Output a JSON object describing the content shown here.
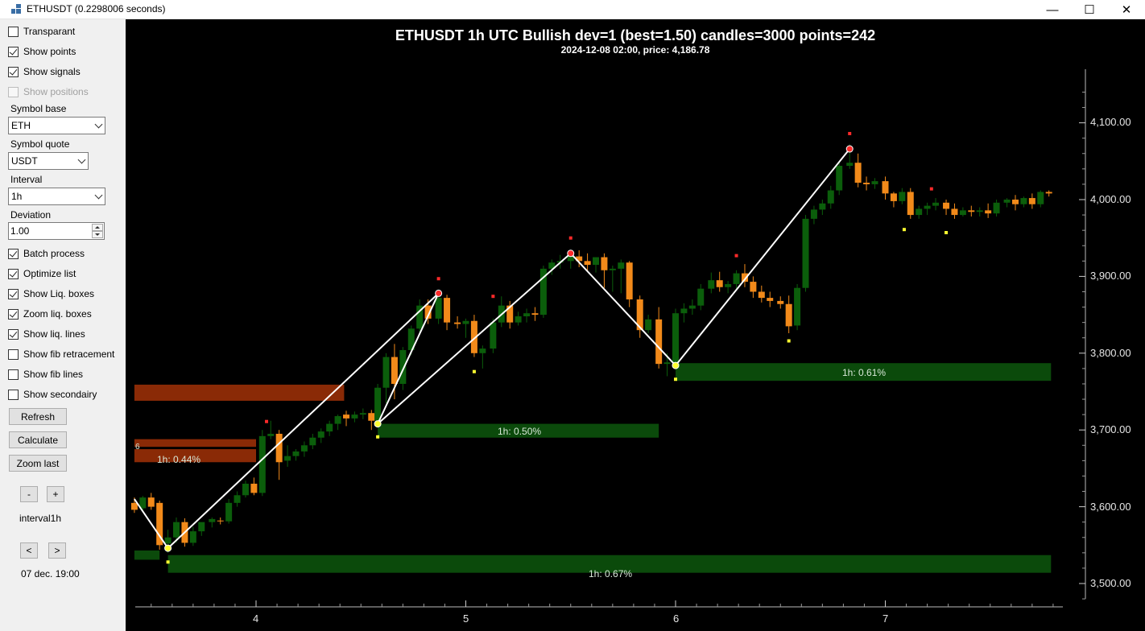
{
  "window": {
    "title": "ETHUSDT (0.2298006 seconds)",
    "minimize_glyph": "—",
    "maximize_glyph": "☐",
    "close_glyph": "✕"
  },
  "panel": {
    "checkboxes": [
      {
        "label": "Transparant",
        "checked": false,
        "disabled": false
      },
      {
        "label": "Show points",
        "checked": true,
        "disabled": false
      },
      {
        "label": "Show signals",
        "checked": true,
        "disabled": false
      },
      {
        "label": "Show positions",
        "checked": false,
        "disabled": true
      }
    ],
    "symbol_base_label": "Symbol base",
    "symbol_base_value": "ETH",
    "symbol_quote_label": "Symbol quote",
    "symbol_quote_value": "USDT",
    "interval_label": "Interval",
    "interval_value": "1h",
    "deviation_label": "Deviation",
    "deviation_value": "1.00",
    "options": [
      {
        "label": "Batch process",
        "checked": true
      },
      {
        "label": "Optimize list",
        "checked": true
      },
      {
        "label": "Show Liq. boxes",
        "checked": true
      },
      {
        "label": "Zoom liq. boxes",
        "checked": true
      },
      {
        "label": "Show liq. lines",
        "checked": true
      },
      {
        "label": "Show fib retracement",
        "checked": false
      },
      {
        "label": "Show fib lines",
        "checked": false
      },
      {
        "label": "Show secondairy",
        "checked": false
      }
    ],
    "refresh_label": "Refresh",
    "calculate_label": "Calculate",
    "zoom_last_label": "Zoom last",
    "minus_label": "-",
    "plus_label": "+",
    "interval_text": "interval1h",
    "prev_label": "<",
    "next_label": ">",
    "date_text": "07 dec. 19:00"
  },
  "chart": {
    "title": "ETHUSDT 1h UTC Bullish dev=1 (best=1.50) candles=3000 points=242",
    "subtitle": "2024-12-08 02:00, price: 4,186.78",
    "y_ticks": [
      "4,100.00",
      "4,000.00",
      "3,900.00",
      "3,800.00",
      "3,700.00",
      "3,600.00",
      "3,500.00"
    ],
    "x_ticks": [
      "4",
      "5",
      "6",
      "7"
    ],
    "cut_label": "6",
    "colors": {
      "bull": "#0b5e0b",
      "bear": "#f28a1a",
      "liq_bear": "#8a2a06",
      "liq_bull": "#0b4a0b",
      "line": "#ffffff",
      "high": "#ff2a2a",
      "low": "#ffff30"
    },
    "zones": [
      {
        "label": "1h: 0.67%",
        "side": "bull"
      },
      {
        "label": "1h: 0.50%",
        "side": "bull"
      },
      {
        "label": "1h: 0.61%",
        "side": "bull"
      },
      {
        "label": "1h: 0.44%",
        "side": "bear"
      }
    ]
  },
  "chart_data": {
    "type": "candlestick",
    "title": "ETHUSDT 1h UTC Bullish dev=1 (best=1.50) candles=3000 points=242",
    "y_range": [
      3470,
      4160
    ],
    "x_range": [
      3.42,
      7.85
    ],
    "zigzag": [
      {
        "x": 3.42,
        "y": 3610
      },
      {
        "x": 3.58,
        "y": 3546
      },
      {
        "x": 4.87,
        "y": 3878
      },
      {
        "x": 4.58,
        "y": 3708
      },
      {
        "x": 5.5,
        "y": 3930
      },
      {
        "x": 6.0,
        "y": 3784
      },
      {
        "x": 6.83,
        "y": 4066
      }
    ],
    "swing_highs": [
      {
        "x": 4.87,
        "y": 3878
      },
      {
        "x": 5.5,
        "y": 3930
      },
      {
        "x": 6.83,
        "y": 4066
      }
    ],
    "swing_lows": [
      {
        "x": 3.58,
        "y": 3546
      },
      {
        "x": 4.58,
        "y": 3708
      },
      {
        "x": 6.0,
        "y": 3784
      }
    ],
    "signals_high": [
      {
        "x": 4.05,
        "y": 3711
      },
      {
        "x": 4.87,
        "y": 3897
      },
      {
        "x": 5.13,
        "y": 3874
      },
      {
        "x": 5.5,
        "y": 3950
      },
      {
        "x": 6.29,
        "y": 3927
      },
      {
        "x": 6.83,
        "y": 4086
      },
      {
        "x": 7.22,
        "y": 4014
      }
    ],
    "signals_low": [
      {
        "x": 3.58,
        "y": 3528
      },
      {
        "x": 4.58,
        "y": 3691
      },
      {
        "x": 5.04,
        "y": 3776
      },
      {
        "x": 6.0,
        "y": 3766
      },
      {
        "x": 6.54,
        "y": 3816
      },
      {
        "x": 7.09,
        "y": 3961
      },
      {
        "x": 7.29,
        "y": 3957
      }
    ],
    "liquidity_zones": [
      {
        "label": "1h: 0.67%",
        "x0": 3.58,
        "x1": 7.79,
        "y0": 3514,
        "y1": 3537,
        "side": "bull"
      },
      {
        "label": "1h: 0.50%",
        "x0": 4.58,
        "x1": 5.92,
        "y0": 3690,
        "y1": 3708,
        "side": "bull"
      },
      {
        "label": "1h: 0.61%",
        "x0": 6.0,
        "x1": 7.79,
        "y0": 3764,
        "y1": 3787,
        "side": "bull"
      },
      {
        "label": "1h: 0.44%",
        "x0": 3.42,
        "x1": 4.0,
        "y0": 3658,
        "y1": 3675,
        "side": "bear"
      }
    ],
    "other_zones": [
      {
        "x0": 3.42,
        "x1": 4.42,
        "y0": 3738,
        "y1": 3759,
        "side": "bear"
      },
      {
        "x0": 3.42,
        "x1": 4.0,
        "y0": 3678,
        "y1": 3688,
        "side": "bear"
      },
      {
        "x0": 3.42,
        "x1": 3.54,
        "y0": 3531,
        "y1": 3543,
        "side": "bull"
      }
    ],
    "candles": [
      [
        3.42,
        3605,
        3612,
        3596,
        3592
      ],
      [
        3.46,
        3598,
        3614,
        3612,
        3594
      ],
      [
        3.5,
        3612,
        3618,
        3600,
        3596
      ],
      [
        3.54,
        3605,
        3608,
        3550,
        3544
      ],
      [
        3.58,
        3552,
        3570,
        3560,
        3540
      ],
      [
        3.62,
        3560,
        3586,
        3580,
        3553
      ],
      [
        3.66,
        3580,
        3585,
        3553,
        3548
      ],
      [
        3.7,
        3553,
        3574,
        3568,
        3549
      ],
      [
        3.74,
        3568,
        3576,
        3580,
        3562
      ],
      [
        3.79,
        3580,
        3586,
        3584,
        3573
      ],
      [
        3.83,
        3582,
        3586,
        3581,
        3577
      ],
      [
        3.87,
        3581,
        3610,
        3605,
        3578
      ],
      [
        3.91,
        3605,
        3620,
        3615,
        3600
      ],
      [
        3.95,
        3615,
        3634,
        3630,
        3612
      ],
      [
        3.99,
        3630,
        3638,
        3618,
        3615
      ],
      [
        4.03,
        3618,
        3700,
        3692,
        3614
      ],
      [
        4.07,
        3692,
        3712,
        3695,
        3688
      ],
      [
        4.11,
        3695,
        3700,
        3658,
        3635
      ],
      [
        4.15,
        3660,
        3680,
        3666,
        3652
      ],
      [
        4.19,
        3666,
        3675,
        3672,
        3660
      ],
      [
        4.23,
        3672,
        3685,
        3680,
        3665
      ],
      [
        4.27,
        3680,
        3695,
        3690,
        3675
      ],
      [
        4.31,
        3690,
        3702,
        3698,
        3683
      ],
      [
        4.35,
        3698,
        3712,
        3708,
        3692
      ],
      [
        4.39,
        3708,
        3720,
        3718,
        3700
      ],
      [
        4.43,
        3720,
        3725,
        3715,
        3705
      ],
      [
        4.47,
        3715,
        3724,
        3720,
        3710
      ],
      [
        4.51,
        3720,
        3728,
        3722,
        3714
      ],
      [
        4.55,
        3722,
        3726,
        3712,
        3700
      ],
      [
        4.58,
        3712,
        3760,
        3755,
        3705
      ],
      [
        4.62,
        3755,
        3800,
        3795,
        3735
      ],
      [
        4.66,
        3795,
        3812,
        3760,
        3740
      ],
      [
        4.7,
        3760,
        3808,
        3804,
        3752
      ],
      [
        4.74,
        3804,
        3836,
        3832,
        3798
      ],
      [
        4.78,
        3832,
        3870,
        3862,
        3826
      ],
      [
        4.82,
        3862,
        3870,
        3845,
        3838
      ],
      [
        4.87,
        3845,
        3880,
        3872,
        3838
      ],
      [
        4.91,
        3872,
        3876,
        3840,
        3830
      ],
      [
        4.96,
        3840,
        3848,
        3838,
        3832
      ],
      [
        5.0,
        3838,
        3845,
        3842,
        3820
      ],
      [
        5.04,
        3842,
        3850,
        3800,
        3795
      ],
      [
        5.08,
        3800,
        3810,
        3806,
        3780
      ],
      [
        5.13,
        3806,
        3845,
        3840,
        3800
      ],
      [
        5.17,
        3840,
        3874,
        3862,
        3834
      ],
      [
        5.21,
        3862,
        3868,
        3840,
        3832
      ],
      [
        5.25,
        3840,
        3854,
        3848,
        3836
      ],
      [
        5.29,
        3848,
        3858,
        3852,
        3840
      ],
      [
        5.33,
        3852,
        3860,
        3850,
        3842
      ],
      [
        5.37,
        3850,
        3914,
        3910,
        3846
      ],
      [
        5.41,
        3910,
        3922,
        3918,
        3902
      ],
      [
        5.45,
        3918,
        3928,
        3920,
        3910
      ],
      [
        5.5,
        3920,
        3932,
        3926,
        3910
      ],
      [
        5.54,
        3926,
        3934,
        3920,
        3912
      ],
      [
        5.58,
        3920,
        3930,
        3915,
        3906
      ],
      [
        5.62,
        3915,
        3922,
        3925,
        3905
      ],
      [
        5.66,
        3925,
        3930,
        3908,
        3885
      ],
      [
        5.7,
        3908,
        3914,
        3910,
        3880
      ],
      [
        5.74,
        3910,
        3922,
        3918,
        3878
      ],
      [
        5.78,
        3918,
        3920,
        3870,
        3860
      ],
      [
        5.83,
        3870,
        3875,
        3830,
        3820
      ],
      [
        5.87,
        3830,
        3850,
        3844,
        3826
      ],
      [
        5.92,
        3844,
        3860,
        3786,
        3780
      ],
      [
        5.96,
        3786,
        3800,
        3788,
        3770
      ],
      [
        6.0,
        3788,
        3858,
        3852,
        3782
      ],
      [
        6.04,
        3852,
        3865,
        3858,
        3840
      ],
      [
        6.08,
        3858,
        3870,
        3862,
        3850
      ],
      [
        6.12,
        3862,
        3890,
        3884,
        3856
      ],
      [
        6.17,
        3884,
        3905,
        3895,
        3878
      ],
      [
        6.21,
        3895,
        3906,
        3886,
        3880
      ],
      [
        6.25,
        3886,
        3894,
        3890,
        3878
      ],
      [
        6.29,
        3890,
        3908,
        3904,
        3884
      ],
      [
        6.33,
        3904,
        3916,
        3893,
        3886
      ],
      [
        6.37,
        3893,
        3900,
        3880,
        3872
      ],
      [
        6.41,
        3880,
        3888,
        3872,
        3866
      ],
      [
        6.45,
        3872,
        3880,
        3868,
        3860
      ],
      [
        6.5,
        3868,
        3874,
        3864,
        3858
      ],
      [
        6.54,
        3864,
        3875,
        3835,
        3826
      ],
      [
        6.58,
        3836,
        3890,
        3885,
        3830
      ],
      [
        6.62,
        3885,
        3980,
        3975,
        3880
      ],
      [
        6.66,
        3975,
        3992,
        3987,
        3968
      ],
      [
        6.7,
        3987,
        4000,
        3995,
        3980
      ],
      [
        6.74,
        3995,
        4018,
        4012,
        3988
      ],
      [
        6.78,
        4012,
        4050,
        4044,
        4006
      ],
      [
        6.83,
        4044,
        4072,
        4048,
        4040
      ],
      [
        6.87,
        4048,
        4060,
        4022,
        4016
      ],
      [
        6.91,
        4022,
        4030,
        4020,
        4012
      ],
      [
        6.95,
        4020,
        4028,
        4024,
        4014
      ],
      [
        7.0,
        4024,
        4030,
        4008,
        4000
      ],
      [
        7.04,
        4008,
        4010,
        3998,
        3990
      ],
      [
        7.08,
        3998,
        4015,
        4010,
        3994
      ],
      [
        7.12,
        4010,
        4015,
        3980,
        3975
      ],
      [
        7.16,
        3980,
        3992,
        3988,
        3975
      ],
      [
        7.2,
        3988,
        3996,
        3992,
        3980
      ],
      [
        7.24,
        3992,
        4002,
        3996,
        3986
      ],
      [
        7.29,
        3996,
        4000,
        3988,
        3980
      ],
      [
        7.33,
        3988,
        3995,
        3980,
        3975
      ],
      [
        7.37,
        3980,
        3990,
        3986,
        3978
      ],
      [
        7.41,
        3986,
        3992,
        3984,
        3978
      ],
      [
        7.45,
        3984,
        3990,
        3986,
        3978
      ],
      [
        7.49,
        3986,
        3995,
        3982,
        3976
      ],
      [
        7.53,
        3982,
        4000,
        3996,
        3978
      ],
      [
        7.58,
        3996,
        4002,
        4000,
        3990
      ],
      [
        7.62,
        4000,
        4006,
        3994,
        3986
      ],
      [
        7.66,
        3994,
        4004,
        4002,
        3990
      ],
      [
        7.7,
        4002,
        4008,
        3994,
        3988
      ],
      [
        7.74,
        3994,
        4012,
        4010,
        3990
      ],
      [
        7.78,
        4010,
        4012,
        4008,
        4004
      ]
    ]
  }
}
